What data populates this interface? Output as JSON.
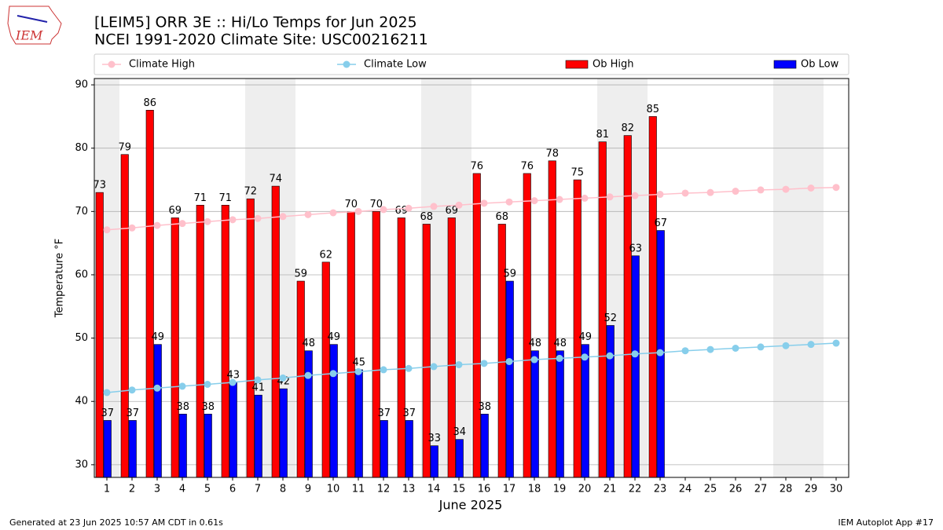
{
  "chart_data": {
    "type": "bar",
    "title": "[LEIM5] ORR 3E :: Hi/Lo Temps for Jun 2025",
    "subtitle": "NCEI 1991-2020 Climate Site: USC00216211",
    "x_label": "June 2025",
    "y_label": "Temperature °F",
    "categories": [
      "1",
      "2",
      "3",
      "4",
      "5",
      "6",
      "7",
      "8",
      "9",
      "10",
      "11",
      "12",
      "13",
      "14",
      "15",
      "16",
      "17",
      "18",
      "19",
      "20",
      "21",
      "22",
      "23",
      "24",
      "25",
      "26",
      "27",
      "28",
      "29",
      "30"
    ],
    "weekend_days": [
      1,
      7,
      8,
      14,
      15,
      21,
      22,
      28,
      29
    ],
    "series": [
      {
        "name": "Climate High",
        "type": "line",
        "color": "#ffc0cb",
        "values": [
          67.1,
          67.4,
          67.8,
          68.1,
          68.4,
          68.7,
          68.9,
          69.2,
          69.5,
          69.8,
          70.0,
          70.3,
          70.5,
          70.8,
          71.0,
          71.3,
          71.5,
          71.7,
          71.9,
          72.1,
          72.3,
          72.5,
          72.7,
          72.9,
          73.0,
          73.2,
          73.4,
          73.5,
          73.7,
          73.8
        ]
      },
      {
        "name": "Climate Low",
        "type": "line",
        "color": "#87ceeb",
        "values": [
          41.4,
          41.8,
          42.1,
          42.4,
          42.7,
          43.0,
          43.4,
          43.7,
          44.1,
          44.4,
          44.7,
          45.0,
          45.2,
          45.5,
          45.8,
          46.0,
          46.3,
          46.6,
          46.8,
          47.0,
          47.2,
          47.5,
          47.7,
          48.0,
          48.2,
          48.4,
          48.6,
          48.8,
          49.0,
          49.2
        ]
      },
      {
        "name": "Ob High",
        "type": "bar",
        "color": "#ff0000",
        "values": [
          73,
          79,
          86,
          69,
          71,
          71,
          72,
          74,
          59,
          62,
          70,
          70,
          69,
          68,
          69,
          76,
          68,
          76,
          78,
          75,
          81,
          82,
          85,
          null,
          null,
          null,
          null,
          null,
          null,
          null
        ]
      },
      {
        "name": "Ob Low",
        "type": "bar",
        "color": "#0000ff",
        "values": [
          37,
          37,
          49,
          38,
          38,
          43,
          41,
          42,
          48,
          49,
          45,
          37,
          37,
          33,
          34,
          38,
          59,
          48,
          48,
          49,
          52,
          63,
          67,
          null,
          null,
          null,
          null,
          null,
          null,
          null
        ]
      }
    ],
    "ylim": [
      28,
      91
    ],
    "yticks": [
      30,
      40,
      50,
      60,
      70,
      80,
      90
    ],
    "grid": true,
    "footer_left": "Generated at 23 Jun 2025 10:57 AM CDT in 0.61s",
    "footer_right": "IEM Autoplot App #17",
    "logo_text": "IEM"
  }
}
